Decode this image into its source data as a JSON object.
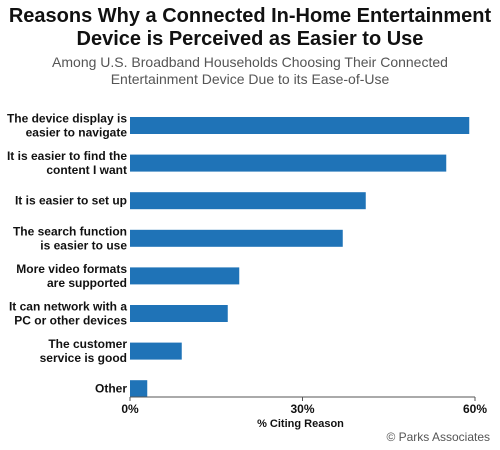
{
  "title": {
    "line1": "Reasons Why a Connected In-Home Entertainment",
    "line2": "Device is Perceived as Easier to Use"
  },
  "subtitle": {
    "line1": "Among U.S. Broadband Households Choosing Their Connected",
    "line2": "Entertainment Device Due to its Ease-of-Use"
  },
  "source": "© Parks Associates",
  "chart_data": {
    "type": "bar",
    "orientation": "horizontal",
    "categories": [
      [
        "The device display is",
        "easier to navigate"
      ],
      [
        "It is easier to find the",
        "content I want"
      ],
      [
        "It is easier to set up"
      ],
      [
        "The search function",
        "is easier to use"
      ],
      [
        "More video formats",
        "are supported"
      ],
      [
        "It can network with a",
        "PC or other devices"
      ],
      [
        "The customer",
        "service is good"
      ],
      [
        "Other"
      ]
    ],
    "values": [
      59,
      55,
      41,
      37,
      19,
      17,
      9,
      3
    ],
    "xlabel": "% Citing Reason",
    "xlim": [
      0,
      60
    ],
    "ticks": [
      0,
      30,
      60
    ],
    "tick_labels": [
      "0%",
      "30%",
      "60%"
    ],
    "grid": false,
    "legend": "none",
    "bar_color": "#1f73b7"
  }
}
